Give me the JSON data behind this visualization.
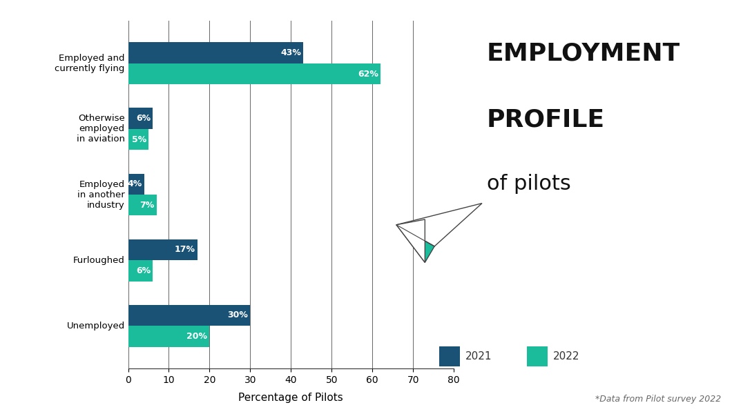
{
  "categories": [
    "Employed and\ncurrently flying",
    "Otherwise\nemployed\nin aviation",
    "Employed\nin another\nindustry",
    "Furloughed",
    "Unemployed"
  ],
  "values_2021": [
    43,
    6,
    4,
    17,
    30
  ],
  "values_2022": [
    62,
    5,
    7,
    6,
    20
  ],
  "color_2021": "#1a5276",
  "color_2022": "#1abc9c",
  "xlabel": "Percentage of Pilots",
  "title_bold": "EMPLOYMENT\nPROFILE",
  "title_normal": "of pilots",
  "footnote": "*Data from Pilot survey 2022",
  "legend_2021": "2021",
  "legend_2022": "2022",
  "xlim": [
    0,
    80
  ],
  "xticks": [
    0,
    10,
    20,
    30,
    40,
    50,
    60,
    70,
    80
  ],
  "bg_color": "#ffffff",
  "bar_height": 0.32,
  "label_fontsize": 9,
  "tick_fontsize": 10,
  "xlabel_fontsize": 11
}
